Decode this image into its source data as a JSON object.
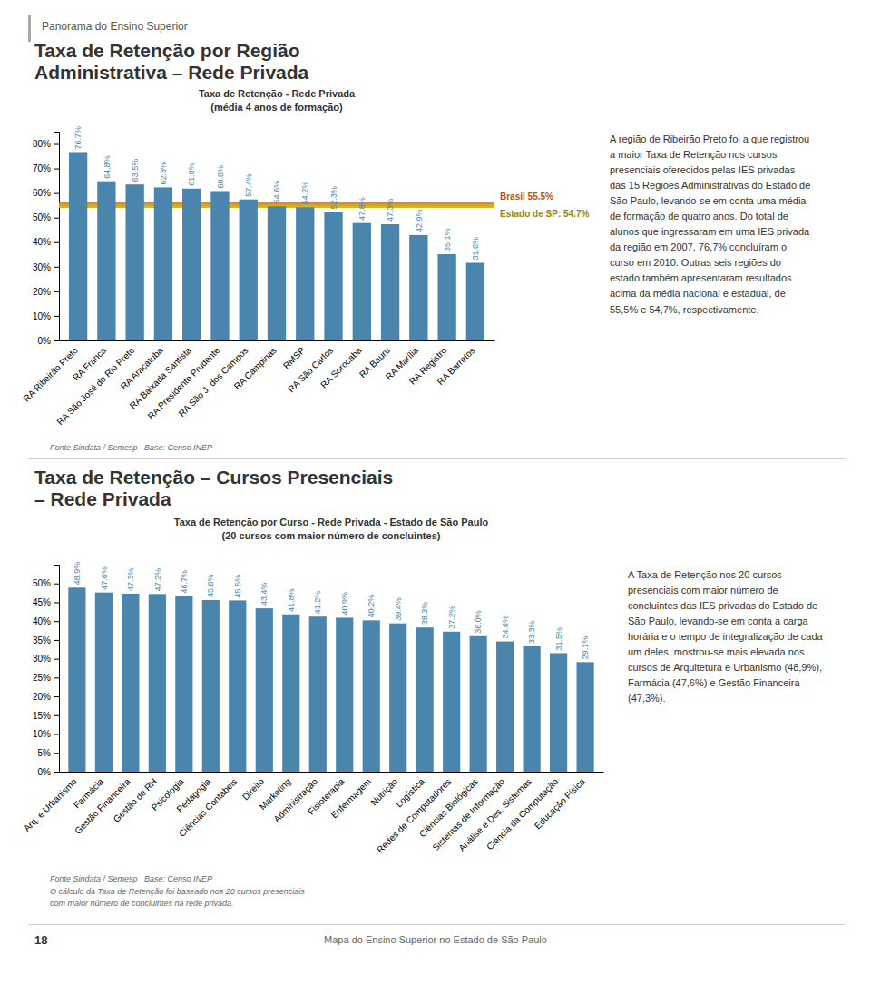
{
  "header": "Panorama do Ensino Superior",
  "footer": {
    "page": "18",
    "text": "Mapa do Ensino Superior no Estado de São Paulo"
  },
  "chart_data": [
    {
      "type": "bar",
      "title": "Taxa de Retenção por Região\nAdministrativa – Rede Privada",
      "subtitle": "Taxa de Retenção - Rede Privada\n(média 4 anos de formação)",
      "categories": [
        "RA Ribeirão Preto",
        "RA Franca",
        "RA São José do Rio Preto",
        "RA Araçatuba",
        "RA Baixada Santista",
        "RA Presidente Prudente",
        "RA São J. dos Campos",
        "RA Campinas",
        "RMSP",
        "RA São Carlos",
        "RA Sorocaba",
        "RA Bauru",
        "RA Marília",
        "RA Registro",
        "RA Barretos"
      ],
      "values": [
        76.7,
        64.8,
        63.5,
        62.3,
        61.8,
        60.8,
        57.4,
        54.6,
        54.2,
        52.3,
        47.8,
        47.3,
        42.9,
        35.1,
        31.6
      ],
      "value_labels": [
        "76.7%",
        "64.8%",
        "63.5%",
        "62.3%",
        "61.8%",
        "60.8%",
        "57.4%",
        "54.6%",
        "54.2%",
        "52.3%",
        "47.8%",
        "47.3%",
        "42.9%",
        "35.1%",
        "31.6%"
      ],
      "color": "#4a85ad",
      "data_labels": true,
      "grid": false,
      "ylim": [
        0,
        85
      ],
      "yticks": [
        {
          "value": 0,
          "label": "0%"
        },
        {
          "value": 10,
          "label": "10%"
        },
        {
          "value": 20,
          "label": "20%"
        },
        {
          "value": 30,
          "label": "30%"
        },
        {
          "value": 40,
          "label": "40%"
        },
        {
          "value": 50,
          "label": "50%"
        },
        {
          "value": 60,
          "label": "60%"
        },
        {
          "value": 70,
          "label": "70%"
        },
        {
          "value": 80,
          "label": "80%"
        }
      ],
      "reference_lines": [
        {
          "value": 55.5,
          "label": "Brasil 55.5%",
          "color": "#e07820"
        },
        {
          "value": 54.7,
          "label": "Estado de SP: 54.7%",
          "color": "#c8b400"
        }
      ],
      "notes": [
        "Fonte Sindata / Semesp   Base: Censo INEP"
      ],
      "annotations": [
        "A região de Ribeirão Preto foi a que registrou\na maior Taxa de Retenção nos cursos\npresenciais oferecidos pelas IES privadas\ndas 15 Regiões Administrativas do Estado de\nSão Paulo, levando-se em conta uma média\nde formação de quatro anos. Do total de\nalunos que ingressaram em uma IES privada\nda região em 2007, 76,7% concluíram o\ncurso em 2010. Outras seis regiões do\nestado também apresentaram resultados\nacima da média nacional e estadual, de\n55,5% e 54,7%, respectivamente."
      ]
    },
    {
      "type": "bar",
      "title": "Taxa de Retenção – Cursos Presenciais\n– Rede Privada",
      "subtitle": "Taxa de Retenção por Curso - Rede Privada - Estado de São Paulo\n(20 cursos com maior número de concluintes)",
      "categories": [
        "Arq. e Urbanismo",
        "Farmácia",
        "Gestão Financeira",
        "Gestão de RH",
        "Psicologia",
        "Pedagogia",
        "Ciências Contábeis",
        "Direito",
        "Marketing",
        "Administração",
        "Fisioterapia",
        "Enfermagem",
        "Nutrição",
        "Logística",
        "Redes de Computadores",
        "Ciências Biológicas",
        "Sistemas de Informação",
        "Análise e Des. Sistemas",
        "Ciência da Computação",
        "Educação Física"
      ],
      "values": [
        48.9,
        47.6,
        47.3,
        47.2,
        46.7,
        45.6,
        45.5,
        43.4,
        41.8,
        41.2,
        40.9,
        40.2,
        39.4,
        38.3,
        37.2,
        36.0,
        34.6,
        33.3,
        31.5,
        29.1
      ],
      "value_labels": [
        "48.9%",
        "47.6%",
        "47.3%",
        "47.2%",
        "46.7%",
        "45.6%",
        "45.5%",
        "43.4%",
        "41.8%",
        "41.2%",
        "40.9%",
        "40.2%",
        "39.4%",
        "38.3%",
        "37.2%",
        "36.0%",
        "34.6%",
        "33.3%",
        "31.5%",
        "29.1%"
      ],
      "color": "#4a85ad",
      "data_labels": true,
      "grid": false,
      "ylim": [
        0,
        55
      ],
      "yticks": [
        {
          "value": 0,
          "label": "0%"
        },
        {
          "value": 5,
          "label": "5%"
        },
        {
          "value": 10,
          "label": "10%"
        },
        {
          "value": 15,
          "label": "15%"
        },
        {
          "value": 20,
          "label": "20%"
        },
        {
          "value": 25,
          "label": "25%"
        },
        {
          "value": 30,
          "label": "30%"
        },
        {
          "value": 35,
          "label": "35%"
        },
        {
          "value": 40,
          "label": "40%"
        },
        {
          "value": 45,
          "label": "45%"
        },
        {
          "value": 50,
          "label": "50%"
        }
      ],
      "notes": [
        "Fonte Sindata / Semesp   Base: Censo INEP",
        "O cálculo da Taxa de Retenção foi baseado nos 20 cursos presenciais\ncom maior número de concluintes na rede privada."
      ],
      "annotations": [
        "A Taxa de Retenção nos 20 cursos\npresenciais com maior número de\nconcluintes das IES privadas do Estado de\nSão Paulo, levando-se em conta a carga\nhorária e o tempo de integralização de cada\num deles, mostrou-se mais elevada nos\ncursos de Arquitetura e Urbanismo (48,9%),\nFarmácia (47,6%) e Gestão Financeira\n(47,3%)."
      ]
    }
  ]
}
